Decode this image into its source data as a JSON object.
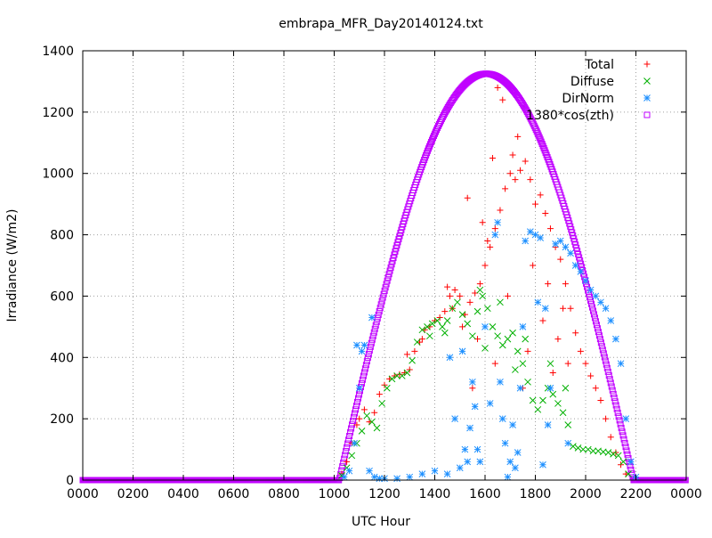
{
  "chart_data": {
    "type": "scatter",
    "title": "embrapa_MFR_Day20140124.txt",
    "xlabel": "UTC Hour",
    "ylabel": "Irradiance (W/m2)",
    "xlim": [
      0,
      24
    ],
    "ylim": [
      0,
      1400
    ],
    "x_ticks": [
      {
        "value": 0,
        "label": "0000"
      },
      {
        "value": 2,
        "label": "0200"
      },
      {
        "value": 4,
        "label": "0400"
      },
      {
        "value": 6,
        "label": "0600"
      },
      {
        "value": 8,
        "label": "0800"
      },
      {
        "value": 10,
        "label": "1000"
      },
      {
        "value": 12,
        "label": "1200"
      },
      {
        "value": 14,
        "label": "1400"
      },
      {
        "value": 16,
        "label": "1600"
      },
      {
        "value": 18,
        "label": "1800"
      },
      {
        "value": 20,
        "label": "2000"
      },
      {
        "value": 22,
        "label": "2200"
      },
      {
        "value": 24,
        "label": "0000"
      }
    ],
    "y_ticks": [
      0,
      200,
      400,
      600,
      800,
      1000,
      1200,
      1400
    ],
    "grid": true,
    "legend_position": "top-right",
    "series": [
      {
        "name": "Total",
        "color": "#ff0000",
        "marker": "plus",
        "points": [
          [
            10.3,
            20
          ],
          [
            10.5,
            60
          ],
          [
            10.7,
            120
          ],
          [
            10.9,
            180
          ],
          [
            11.0,
            200
          ],
          [
            11.2,
            230
          ],
          [
            11.4,
            190
          ],
          [
            11.6,
            220
          ],
          [
            11.8,
            280
          ],
          [
            12.0,
            310
          ],
          [
            12.2,
            330
          ],
          [
            12.4,
            340
          ],
          [
            12.6,
            345
          ],
          [
            12.8,
            350
          ],
          [
            13.0,
            360
          ],
          [
            13.2,
            420
          ],
          [
            13.4,
            450
          ],
          [
            13.6,
            490
          ],
          [
            13.8,
            500
          ],
          [
            14.0,
            520
          ],
          [
            14.2,
            530
          ],
          [
            14.4,
            550
          ],
          [
            14.6,
            600
          ],
          [
            14.8,
            620
          ],
          [
            15.0,
            600
          ],
          [
            15.2,
            540
          ],
          [
            15.4,
            580
          ],
          [
            15.6,
            610
          ],
          [
            15.8,
            640
          ],
          [
            16.0,
            700
          ],
          [
            16.2,
            760
          ],
          [
            16.4,
            820
          ],
          [
            16.6,
            880
          ],
          [
            16.8,
            950
          ],
          [
            17.0,
            1000
          ],
          [
            17.2,
            980
          ],
          [
            17.4,
            1010
          ],
          [
            17.6,
            1040
          ],
          [
            17.8,
            980
          ],
          [
            18.0,
            900
          ],
          [
            18.2,
            930
          ],
          [
            18.4,
            870
          ],
          [
            18.6,
            820
          ],
          [
            18.8,
            760
          ],
          [
            19.0,
            720
          ],
          [
            19.2,
            640
          ],
          [
            19.4,
            560
          ],
          [
            19.6,
            480
          ],
          [
            19.8,
            420
          ],
          [
            20.0,
            380
          ],
          [
            20.2,
            340
          ],
          [
            20.4,
            300
          ],
          [
            20.6,
            260
          ],
          [
            20.8,
            200
          ],
          [
            21.0,
            140
          ],
          [
            21.2,
            90
          ],
          [
            21.4,
            50
          ],
          [
            21.6,
            20
          ],
          [
            14.5,
            630
          ],
          [
            15.3,
            920
          ],
          [
            15.9,
            840
          ],
          [
            16.3,
            1050
          ],
          [
            16.5,
            1280
          ],
          [
            16.7,
            1240
          ],
          [
            17.1,
            1060
          ],
          [
            17.3,
            1120
          ],
          [
            16.1,
            780
          ],
          [
            15.7,
            460
          ],
          [
            16.4,
            380
          ],
          [
            17.5,
            300
          ],
          [
            18.3,
            520
          ],
          [
            18.5,
            640
          ],
          [
            18.9,
            460
          ],
          [
            19.1,
            560
          ],
          [
            12.9,
            410
          ],
          [
            13.5,
            460
          ],
          [
            14.7,
            560
          ],
          [
            15.1,
            500
          ],
          [
            16.9,
            600
          ],
          [
            17.9,
            700
          ],
          [
            18.7,
            350
          ],
          [
            19.3,
            380
          ],
          [
            15.5,
            300
          ],
          [
            17.7,
            420
          ]
        ]
      },
      {
        "name": "Diffuse",
        "color": "#00b000",
        "marker": "cross",
        "points": [
          [
            10.3,
            15
          ],
          [
            10.5,
            40
          ],
          [
            10.7,
            80
          ],
          [
            10.9,
            120
          ],
          [
            11.1,
            160
          ],
          [
            11.3,
            210
          ],
          [
            11.5,
            190
          ],
          [
            11.7,
            170
          ],
          [
            11.9,
            250
          ],
          [
            12.1,
            300
          ],
          [
            12.3,
            330
          ],
          [
            12.5,
            340
          ],
          [
            12.7,
            340
          ],
          [
            12.9,
            350
          ],
          [
            13.1,
            390
          ],
          [
            13.3,
            450
          ],
          [
            13.5,
            490
          ],
          [
            13.7,
            500
          ],
          [
            13.9,
            510
          ],
          [
            14.1,
            520
          ],
          [
            14.3,
            500
          ],
          [
            14.5,
            520
          ],
          [
            14.7,
            560
          ],
          [
            14.9,
            580
          ],
          [
            15.1,
            540
          ],
          [
            15.3,
            510
          ],
          [
            15.5,
            470
          ],
          [
            15.7,
            550
          ],
          [
            15.9,
            600
          ],
          [
            16.1,
            560
          ],
          [
            16.3,
            500
          ],
          [
            16.5,
            470
          ],
          [
            16.7,
            440
          ],
          [
            16.9,
            460
          ],
          [
            17.1,
            480
          ],
          [
            17.3,
            420
          ],
          [
            17.5,
            380
          ],
          [
            17.7,
            320
          ],
          [
            17.9,
            260
          ],
          [
            18.1,
            230
          ],
          [
            18.3,
            260
          ],
          [
            18.5,
            300
          ],
          [
            18.7,
            280
          ],
          [
            18.9,
            250
          ],
          [
            19.1,
            220
          ],
          [
            19.3,
            180
          ],
          [
            19.5,
            110
          ],
          [
            19.7,
            105
          ],
          [
            19.9,
            100
          ],
          [
            20.1,
            100
          ],
          [
            20.3,
            95
          ],
          [
            20.5,
            95
          ],
          [
            20.7,
            92
          ],
          [
            20.9,
            90
          ],
          [
            21.1,
            85
          ],
          [
            21.3,
            80
          ],
          [
            21.5,
            60
          ],
          [
            21.7,
            20
          ],
          [
            15.8,
            620
          ],
          [
            16.6,
            580
          ],
          [
            14.4,
            480
          ],
          [
            17.6,
            460
          ],
          [
            18.6,
            380
          ],
          [
            19.2,
            300
          ],
          [
            16.0,
            430
          ],
          [
            17.2,
            360
          ],
          [
            13.8,
            470
          ]
        ]
      },
      {
        "name": "DirNorm",
        "color": "#1e90ff",
        "marker": "star",
        "points": [
          [
            10.4,
            10
          ],
          [
            10.6,
            30
          ],
          [
            10.8,
            120
          ],
          [
            11.0,
            300
          ],
          [
            11.1,
            420
          ],
          [
            11.2,
            440
          ],
          [
            11.4,
            30
          ],
          [
            11.6,
            10
          ],
          [
            11.8,
            5
          ],
          [
            12.0,
            5
          ],
          [
            12.5,
            5
          ],
          [
            13.0,
            10
          ],
          [
            13.5,
            20
          ],
          [
            14.0,
            30
          ],
          [
            14.5,
            20
          ],
          [
            15.0,
            40
          ],
          [
            15.2,
            100
          ],
          [
            15.4,
            170
          ],
          [
            15.5,
            320
          ],
          [
            15.6,
            240
          ],
          [
            15.8,
            60
          ],
          [
            16.0,
            500
          ],
          [
            16.2,
            250
          ],
          [
            16.4,
            800
          ],
          [
            16.6,
            320
          ],
          [
            16.8,
            120
          ],
          [
            17.0,
            60
          ],
          [
            17.2,
            40
          ],
          [
            17.4,
            300
          ],
          [
            17.6,
            780
          ],
          [
            17.8,
            810
          ],
          [
            18.0,
            800
          ],
          [
            18.2,
            790
          ],
          [
            18.4,
            560
          ],
          [
            18.6,
            300
          ],
          [
            18.8,
            770
          ],
          [
            19.0,
            780
          ],
          [
            19.2,
            760
          ],
          [
            19.4,
            740
          ],
          [
            19.6,
            700
          ],
          [
            19.8,
            680
          ],
          [
            20.0,
            650
          ],
          [
            20.2,
            620
          ],
          [
            20.4,
            600
          ],
          [
            20.6,
            580
          ],
          [
            20.8,
            560
          ],
          [
            21.0,
            520
          ],
          [
            21.2,
            460
          ],
          [
            21.4,
            380
          ],
          [
            21.6,
            200
          ],
          [
            21.8,
            60
          ],
          [
            22.0,
            10
          ],
          [
            11.5,
            530
          ],
          [
            10.9,
            440
          ],
          [
            14.8,
            200
          ],
          [
            15.1,
            420
          ],
          [
            16.5,
            840
          ],
          [
            17.1,
            180
          ],
          [
            17.5,
            500
          ],
          [
            18.1,
            580
          ],
          [
            18.5,
            180
          ],
          [
            19.3,
            120
          ],
          [
            15.7,
            100
          ],
          [
            16.7,
            200
          ],
          [
            16.9,
            10
          ],
          [
            17.3,
            90
          ],
          [
            18.3,
            50
          ],
          [
            14.6,
            400
          ],
          [
            15.3,
            60
          ]
        ]
      },
      {
        "name": "1380*cos(zth)",
        "color": "#c000ff",
        "marker": "square",
        "zero_before": 10.2,
        "zero_after": 21.9,
        "peak": 1325,
        "peak_at": 16.05
      }
    ]
  }
}
